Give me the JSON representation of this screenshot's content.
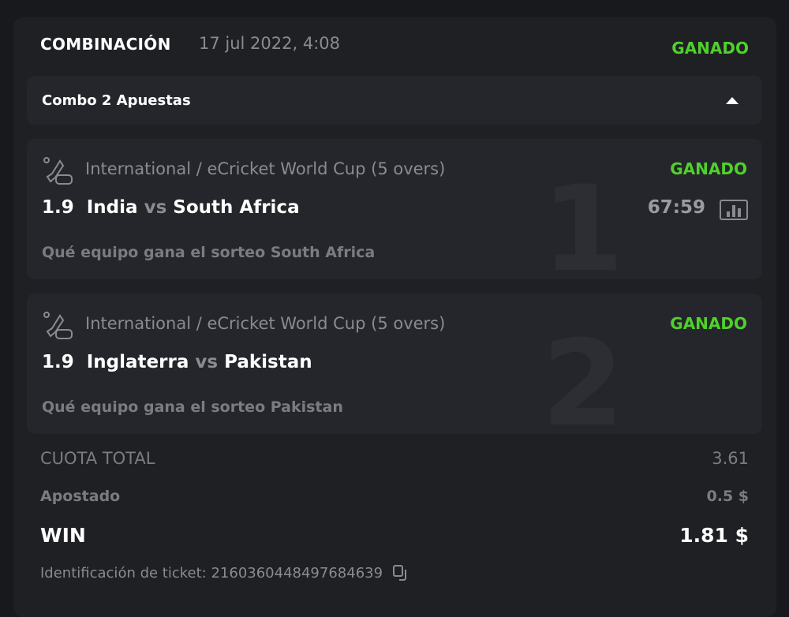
{
  "header": {
    "title": "COMBINACIÓN",
    "date": "17 jul 2022, 4:08",
    "status": "GANADO"
  },
  "combo": {
    "label": "Combo 2 Apuestas",
    "toggle_icon": "caret-up-icon"
  },
  "bets": [
    {
      "number": "1",
      "league": "International / eCricket World Cup (5 overs)",
      "status": "GANADO",
      "odd": "1.9",
      "home": "India",
      "vs": "vs",
      "away": "South Africa",
      "time": "67:59",
      "selection": "Qué equipo gana el sorteo South Africa",
      "icon": "ecricket-icon"
    },
    {
      "number": "2",
      "league": "International / eCricket World Cup (5 overs)",
      "status": "GANADO",
      "odd": "1.9",
      "home": "Inglaterra",
      "vs": "vs",
      "away": "Pakistan",
      "selection": "Qué equipo gana el sorteo Pakistan",
      "icon": "ecricket-icon"
    }
  ],
  "summary": {
    "total_odds_label": "CUOTA TOTAL",
    "total_odds": "3.61",
    "stake_label": "Apostado",
    "stake": "0.5 $",
    "win_label": "WIN",
    "win": "1.81 $"
  },
  "ticket": {
    "label": "Identificación de ticket: 2160360448497684639",
    "copy_icon": "copy-icon"
  },
  "colors": {
    "won": "#4fd12b",
    "background": "#18191d",
    "card": "#1f2024",
    "panel": "#25262b"
  }
}
